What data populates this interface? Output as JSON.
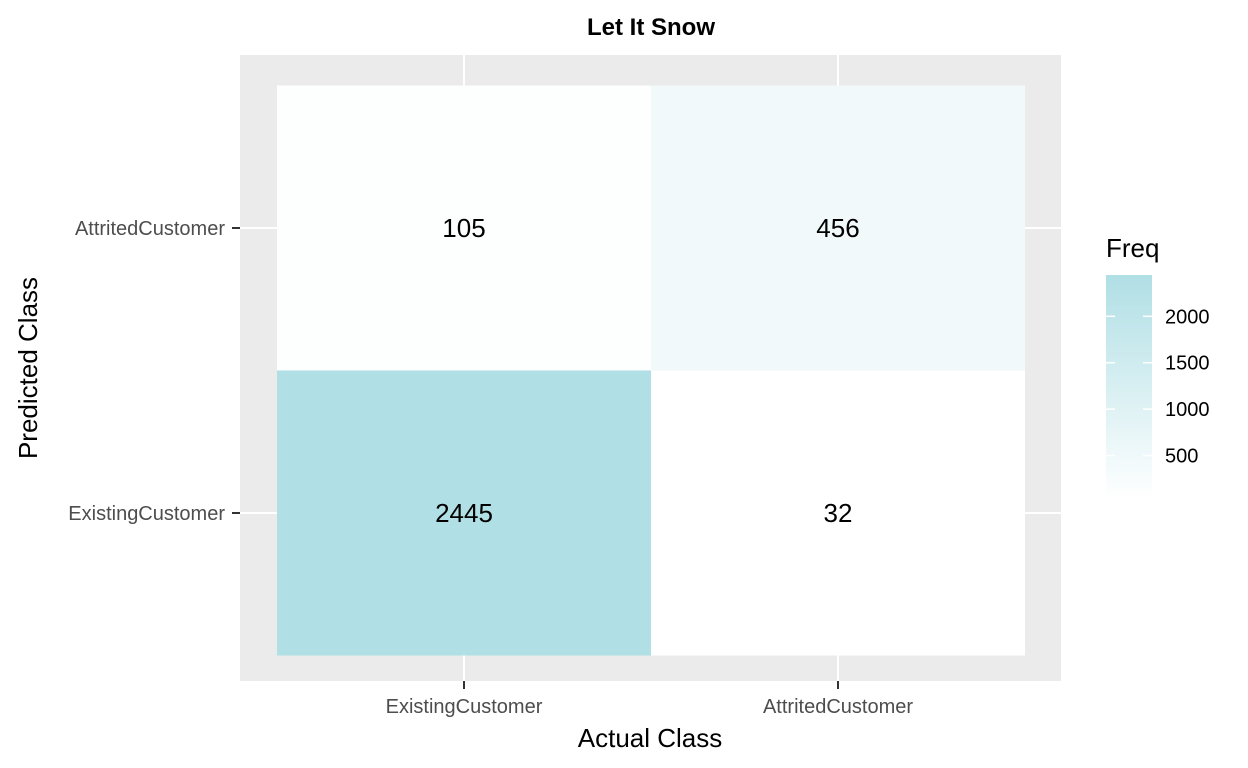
{
  "chart_data": {
    "type": "heatmap",
    "title": "Let It Snow",
    "xlabel": "Actual Class",
    "ylabel": "Predicted Class",
    "x_categories": [
      "ExistingCustomer",
      "AttritedCustomer"
    ],
    "y_categories": [
      "ExistingCustomer",
      "AttritedCustomer"
    ],
    "cells": [
      {
        "x": "ExistingCustomer",
        "y": "AttritedCustomer",
        "value": 105
      },
      {
        "x": "AttritedCustomer",
        "y": "AttritedCustomer",
        "value": 456
      },
      {
        "x": "ExistingCustomer",
        "y": "ExistingCustomer",
        "value": 2445
      },
      {
        "x": "AttritedCustomer",
        "y": "ExistingCustomer",
        "value": 32
      }
    ],
    "legend": {
      "title": "Freq",
      "ticks": [
        500,
        1000,
        1500,
        2000
      ],
      "range": [
        32,
        2445
      ],
      "low_color": "#ffffff",
      "high_color": "#b0dfe5",
      "placement": "right"
    },
    "panel_background": "#ebebeb",
    "grid": true
  }
}
